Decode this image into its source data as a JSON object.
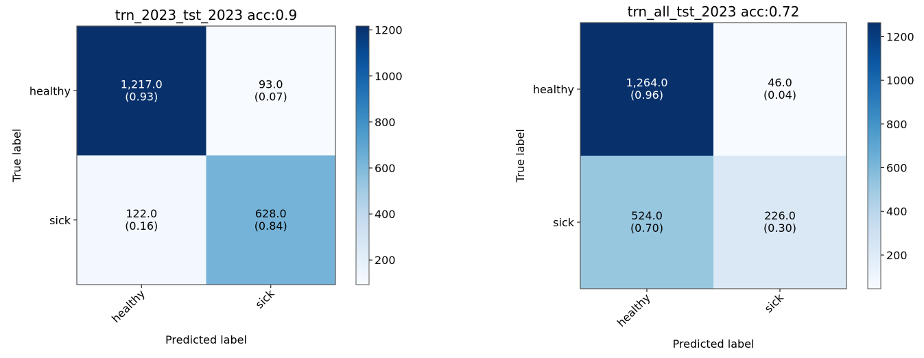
{
  "chart_data": [
    {
      "type": "heatmap",
      "title": "trn_2023_tst_2023 acc:0.9",
      "xlabel": "Predicted label",
      "ylabel": "True label",
      "x_categories": [
        "healthy",
        "sick"
      ],
      "y_categories": [
        "healthy",
        "sick"
      ],
      "values": [
        [
          1217.0,
          93.0
        ],
        [
          122.0,
          628.0
        ]
      ],
      "cell_labels": [
        [
          "1,217.0\n(0.93)",
          "93.0\n(0.07)"
        ],
        [
          "122.0\n(0.16)",
          "628.0\n(0.84)"
        ]
      ],
      "vmin": 93,
      "vmax": 1217,
      "colorbar_ticks": [
        "200",
        "400",
        "600",
        "800",
        "1000",
        "1200"
      ],
      "colormap": "Blues"
    },
    {
      "type": "heatmap",
      "title": "trn_all_tst_2023 acc:0.72",
      "xlabel": "Predicted label",
      "ylabel": "True label",
      "x_categories": [
        "healthy",
        "sick"
      ],
      "y_categories": [
        "healthy",
        "sick"
      ],
      "values": [
        [
          1264.0,
          46.0
        ],
        [
          524.0,
          226.0
        ]
      ],
      "cell_labels": [
        [
          "1,264.0\n(0.96)",
          "46.0\n(0.04)"
        ],
        [
          "524.0\n(0.70)",
          "226.0\n(0.30)"
        ]
      ],
      "vmin": 46,
      "vmax": 1264,
      "colorbar_ticks": [
        "200",
        "400",
        "600",
        "800",
        "1000",
        "1200"
      ],
      "colormap": "Blues"
    }
  ]
}
